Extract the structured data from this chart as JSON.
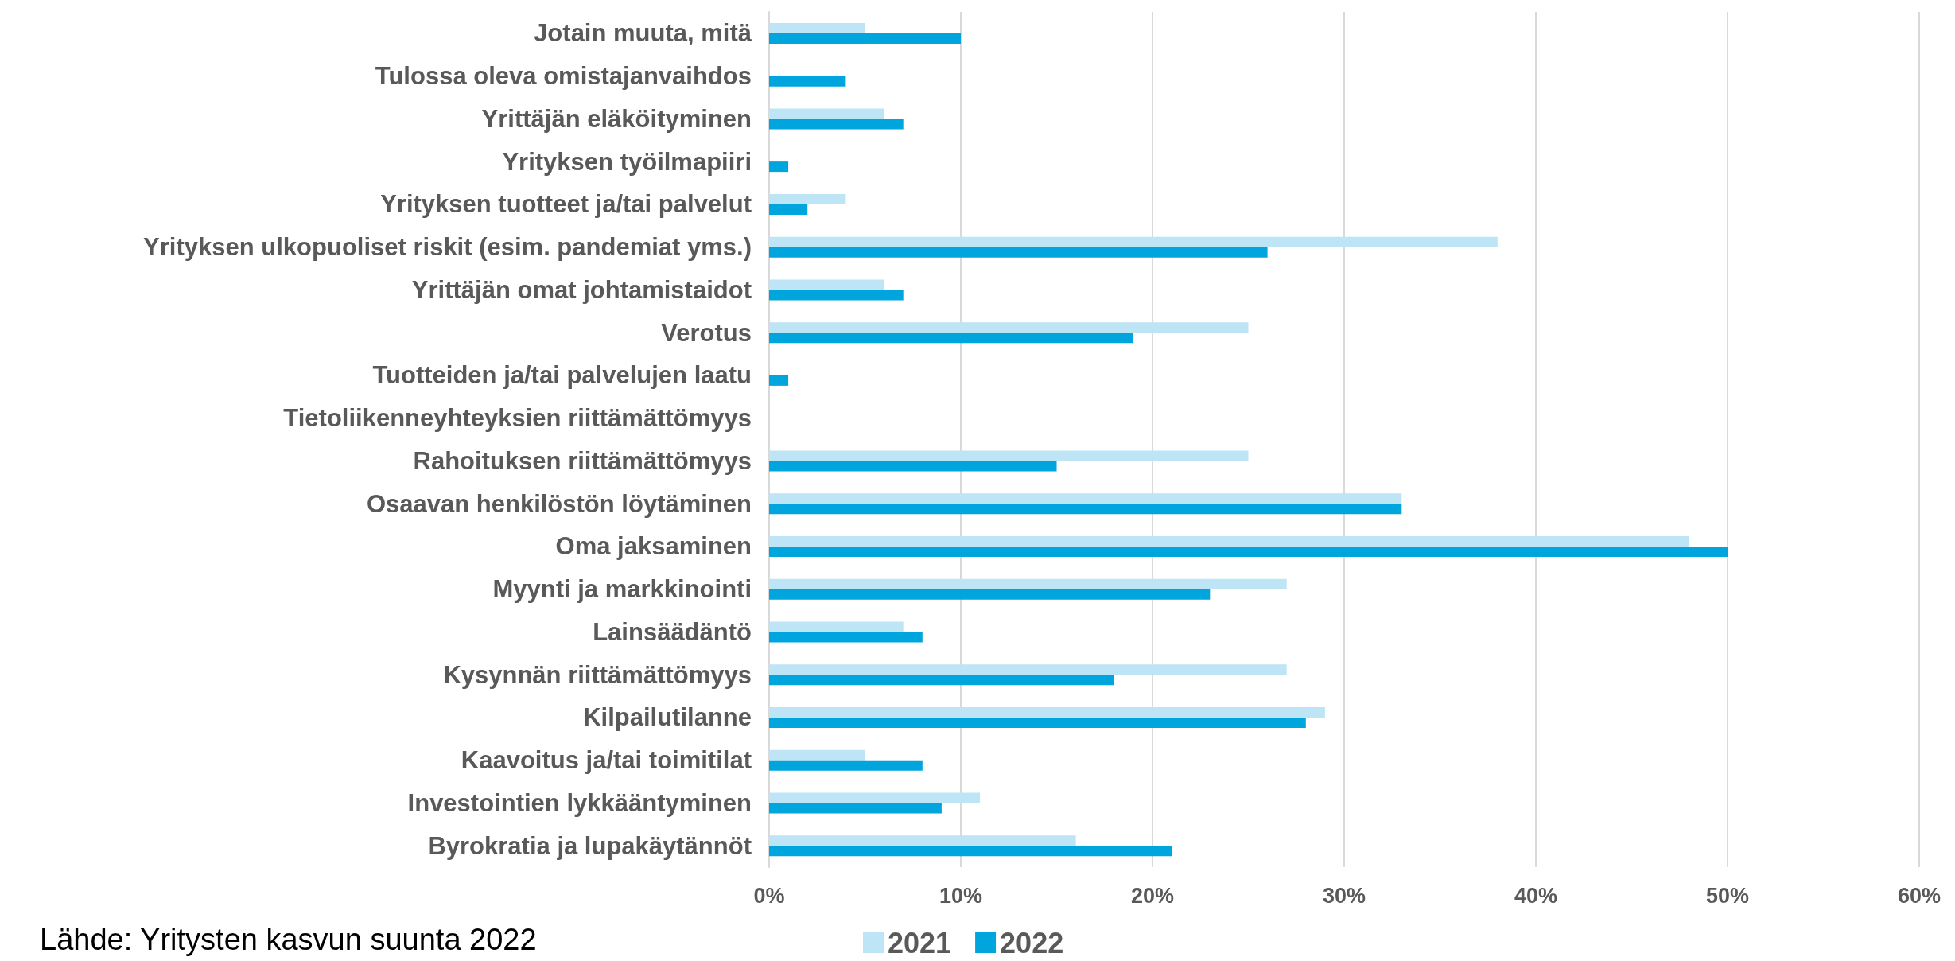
{
  "chart_data": {
    "type": "bar",
    "orientation": "horizontal",
    "categories": [
      "Jotain muuta, mitä",
      "Tulossa oleva omistajanvaihdos",
      "Yrittäjän eläköityminen",
      "Yrityksen työilmapiiri",
      "Yrityksen tuotteet ja/tai palvelut",
      "Yrityksen ulkopuoliset riskit (esim. pandemiat yms.)",
      "Yrittäjän omat johtamistaidot",
      "Verotus",
      "Tuotteiden ja/tai palvelujen laatu",
      "Tietoliikenneyhteyksien riittämättömyys",
      "Rahoituksen riittämättömyys",
      "Osaavan henkilöstön löytäminen",
      "Oma jaksaminen",
      "Myynti ja markkinointi",
      "Lainsäädäntö",
      "Kysynnän riittämättömyys",
      "Kilpailutilanne",
      "Kaavoitus ja/tai toimitilat",
      "Investointien lykkääntyminen",
      "Byrokratia ja lupakäytännöt"
    ],
    "series": [
      {
        "name": "2021",
        "color": "#bde5f5",
        "values": [
          5,
          0,
          6,
          0,
          4,
          38,
          6,
          25,
          0,
          0,
          25,
          33,
          48,
          27,
          7,
          27,
          29,
          5,
          11,
          16
        ]
      },
      {
        "name": "2022",
        "color": "#00a5dd",
        "values": [
          10,
          4,
          7,
          1,
          2,
          26,
          7,
          19,
          1,
          0,
          15,
          33,
          50,
          23,
          8,
          18,
          28,
          8,
          9,
          21
        ]
      }
    ],
    "xlim": [
      0,
      60
    ],
    "xticks": [
      {
        "value": 0,
        "label": "0%"
      },
      {
        "value": 10,
        "label": "10%"
      },
      {
        "value": 20,
        "label": "20%"
      },
      {
        "value": 30,
        "label": "30%"
      },
      {
        "value": 40,
        "label": "40%"
      },
      {
        "value": 50,
        "label": "50%"
      },
      {
        "value": 60,
        "label": "60%"
      }
    ],
    "grid": "x",
    "legend": "bottom",
    "annotations": [
      "Lähde: Yritysten kasvun suunta 2022"
    ]
  }
}
